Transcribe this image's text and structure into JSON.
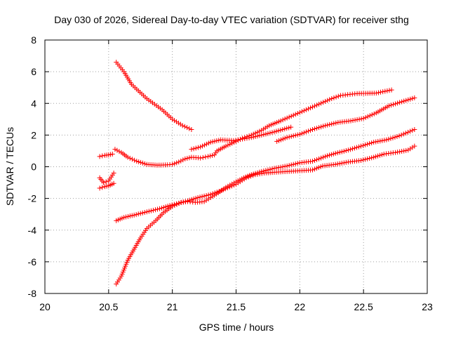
{
  "chart_data": {
    "type": "scatter",
    "title": "Day 030 of 2026, Sidereal Day-to-day VTEC variation (SDTVAR) for receiver sthg",
    "xlabel": "GPS time / hours",
    "ylabel": "SDTVAR / TECUs",
    "xlim": [
      20,
      23
    ],
    "ylim": [
      -8,
      8
    ],
    "x_ticks": [
      "20",
      "20.5",
      "21",
      "21.5",
      "22",
      "22.5",
      "23"
    ],
    "y_ticks": [
      "-8",
      "-6",
      "-4",
      "-2",
      "0",
      "2",
      "4",
      "6",
      "8"
    ],
    "grid": true,
    "marker": "+",
    "color": "#ff0000",
    "series": [
      {
        "points": [
          [
            20.56,
            6.6
          ],
          [
            20.62,
            6.0
          ],
          [
            20.68,
            5.2
          ],
          [
            20.8,
            4.3
          ],
          [
            20.92,
            3.6
          ],
          [
            21.0,
            3.0
          ],
          [
            21.08,
            2.6
          ],
          [
            21.15,
            2.35
          ]
        ]
      },
      {
        "points": [
          [
            20.55,
            1.1
          ],
          [
            20.6,
            0.9
          ],
          [
            20.65,
            0.6
          ],
          [
            20.72,
            0.35
          ],
          [
            20.8,
            0.15
          ],
          [
            20.88,
            0.1
          ],
          [
            20.96,
            0.12
          ],
          [
            21.0,
            0.15
          ],
          [
            21.05,
            0.3
          ],
          [
            21.1,
            0.5
          ],
          [
            21.15,
            0.6
          ],
          [
            21.22,
            0.55
          ],
          [
            21.28,
            0.65
          ],
          [
            21.33,
            0.75
          ],
          [
            21.35,
            1.0
          ],
          [
            21.42,
            1.3
          ],
          [
            21.5,
            1.6
          ],
          [
            21.55,
            1.8
          ],
          [
            21.62,
            2.0
          ],
          [
            21.7,
            2.3
          ],
          [
            21.76,
            2.6
          ],
          [
            21.85,
            2.9
          ],
          [
            21.95,
            3.25
          ],
          [
            22.05,
            3.6
          ],
          [
            22.15,
            3.95
          ],
          [
            22.25,
            4.3
          ],
          [
            22.32,
            4.5
          ],
          [
            22.45,
            4.62
          ],
          [
            22.6,
            4.65
          ],
          [
            22.72,
            4.85
          ]
        ]
      },
      {
        "points": [
          [
            21.15,
            1.1
          ],
          [
            21.22,
            1.25
          ],
          [
            21.3,
            1.55
          ],
          [
            21.38,
            1.7
          ],
          [
            21.48,
            1.65
          ],
          [
            21.55,
            1.75
          ],
          [
            21.62,
            1.85
          ],
          [
            21.7,
            2.0
          ],
          [
            21.8,
            2.2
          ],
          [
            21.93,
            2.5
          ]
        ]
      },
      {
        "points": [
          [
            21.82,
            1.6
          ],
          [
            21.9,
            1.85
          ],
          [
            22.0,
            2.05
          ],
          [
            22.1,
            2.35
          ],
          [
            22.2,
            2.6
          ],
          [
            22.3,
            2.8
          ],
          [
            22.4,
            2.9
          ],
          [
            22.5,
            3.05
          ],
          [
            22.6,
            3.4
          ],
          [
            22.7,
            3.85
          ],
          [
            22.8,
            4.1
          ],
          [
            22.9,
            4.35
          ]
        ]
      },
      {
        "points": [
          [
            20.56,
            -3.4
          ],
          [
            20.62,
            -3.2
          ],
          [
            20.7,
            -3.05
          ],
          [
            20.8,
            -2.85
          ],
          [
            20.9,
            -2.65
          ],
          [
            20.98,
            -2.45
          ],
          [
            21.05,
            -2.3
          ],
          [
            21.12,
            -2.15
          ],
          [
            21.2,
            -1.95
          ],
          [
            21.3,
            -1.75
          ],
          [
            21.4,
            -1.45
          ],
          [
            21.5,
            -1.1
          ],
          [
            21.58,
            -0.7
          ],
          [
            21.65,
            -0.5
          ],
          [
            21.72,
            -0.4
          ],
          [
            21.8,
            -0.35
          ],
          [
            21.9,
            -0.3
          ],
          [
            22.0,
            -0.25
          ],
          [
            22.1,
            -0.2
          ],
          [
            22.18,
            0.05
          ],
          [
            22.28,
            0.15
          ],
          [
            22.38,
            0.3
          ],
          [
            22.48,
            0.4
          ],
          [
            22.58,
            0.6
          ],
          [
            22.66,
            0.8
          ],
          [
            22.75,
            0.9
          ],
          [
            22.85,
            1.05
          ],
          [
            22.9,
            1.3
          ]
        ]
      },
      {
        "points": [
          [
            20.56,
            -7.4
          ],
          [
            20.6,
            -6.9
          ],
          [
            20.65,
            -5.9
          ],
          [
            20.7,
            -5.2
          ],
          [
            20.75,
            -4.5
          ],
          [
            20.8,
            -3.9
          ],
          [
            20.87,
            -3.4
          ],
          [
            20.93,
            -2.9
          ],
          [
            21.0,
            -2.5
          ],
          [
            21.07,
            -2.25
          ],
          [
            21.12,
            -2.2
          ],
          [
            21.18,
            -2.25
          ],
          [
            21.25,
            -2.2
          ],
          [
            21.3,
            -1.95
          ],
          [
            21.36,
            -1.65
          ],
          [
            21.42,
            -1.3
          ],
          [
            21.5,
            -0.95
          ],
          [
            21.56,
            -0.7
          ],
          [
            21.62,
            -0.5
          ],
          [
            21.7,
            -0.3
          ],
          [
            21.8,
            -0.1
          ],
          [
            21.9,
            0.05
          ],
          [
            22.0,
            0.25
          ],
          [
            22.1,
            0.35
          ],
          [
            22.2,
            0.65
          ],
          [
            22.28,
            0.85
          ],
          [
            22.38,
            1.05
          ],
          [
            22.48,
            1.3
          ],
          [
            22.58,
            1.55
          ],
          [
            22.68,
            1.7
          ],
          [
            22.78,
            1.95
          ],
          [
            22.9,
            2.35
          ]
        ]
      },
      {
        "points": [
          [
            20.43,
            0.65
          ],
          [
            20.47,
            0.72
          ],
          [
            20.5,
            0.75
          ],
          [
            20.53,
            0.8
          ]
        ]
      },
      {
        "points": [
          [
            20.43,
            -0.7
          ],
          [
            20.46,
            -1.0
          ],
          [
            20.5,
            -0.9
          ],
          [
            20.54,
            -0.4
          ]
        ]
      },
      {
        "points": [
          [
            20.43,
            -1.35
          ],
          [
            20.47,
            -1.25
          ],
          [
            20.5,
            -1.2
          ],
          [
            20.54,
            -1.05
          ]
        ]
      }
    ]
  }
}
